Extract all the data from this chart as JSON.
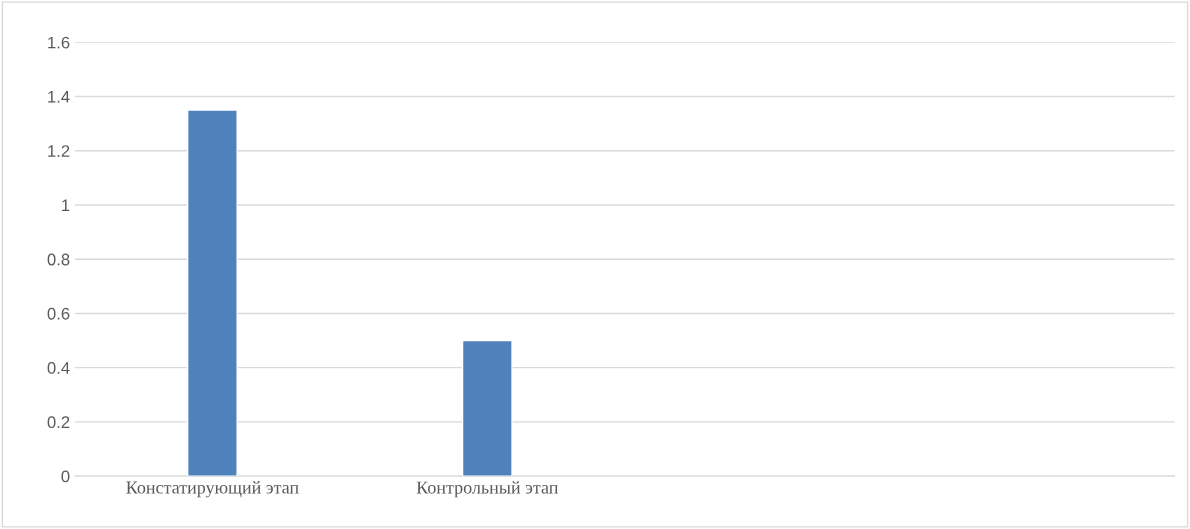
{
  "chart_data": {
    "type": "bar",
    "categories": [
      "Констатирующий этап",
      "Контрольный этап",
      null,
      null
    ],
    "series": [
      {
        "color": "#4f81bd",
        "values": [
          1.35,
          0.5,
          null,
          null
        ]
      }
    ],
    "ylim": [
      0,
      1.6
    ],
    "yticks": [
      0,
      {
        "value": 0.2,
        "label": "0.2"
      },
      {
        "value": 0.4,
        "label": "0.4"
      },
      {
        "value": 0.6,
        "label": "0.6"
      },
      {
        "value": 0.8,
        "label": "0.8"
      },
      1,
      {
        "value": 1.2,
        "label": "1.2"
      },
      {
        "value": 1.4,
        "label": "1.4"
      },
      {
        "value": 1.6,
        "label": "1.6"
      }
    ],
    "grid": "y",
    "legend": false
  }
}
